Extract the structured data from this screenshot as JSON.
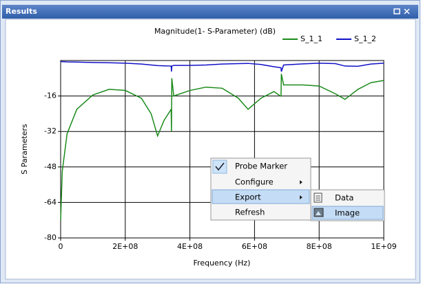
{
  "window": {
    "title": "Results"
  },
  "chart_data": {
    "type": "line",
    "title": "Magnitude(1- S-Parameter) (dB)",
    "xlabel": "Frequency (Hz)",
    "ylabel": "S Parameters",
    "x": [
      0,
      5000000,
      20000000,
      50000000,
      100000000,
      150000000,
      200000000,
      250000000,
      280000000,
      300000000,
      320000000,
      342000000,
      343000000,
      344000000,
      350000000,
      400000000,
      450000000,
      500000000,
      550000000,
      580000000,
      620000000,
      660000000,
      680000000,
      682000000,
      683000000,
      690000000,
      750000000,
      800000000,
      850000000,
      880000000,
      920000000,
      960000000,
      1000000000
    ],
    "series": [
      {
        "name": "S_1_1",
        "color": "#1a8a1a",
        "values": [
          -72,
          -50,
          -33,
          -22,
          -15.5,
          -13,
          -13.5,
          -17,
          -24,
          -34,
          -27,
          -22,
          -32,
          -8,
          -16,
          -13.5,
          -12,
          -12.5,
          -17,
          -22,
          -17,
          -14,
          -16,
          -16,
          -6,
          -11,
          -11,
          -11.5,
          -15,
          -17.5,
          -13,
          -10,
          -9
        ]
      },
      {
        "name": "S_1_2",
        "color": "#1010c8",
        "values": [
          -0.5,
          -0.5,
          -0.6,
          -0.7,
          -0.9,
          -1,
          -1.2,
          -1.6,
          -2,
          -2.3,
          -2.4,
          -2.5,
          -5,
          -2.5,
          -2.2,
          -2.2,
          -2,
          -1.6,
          -1.4,
          -1.3,
          -1.8,
          -2.8,
          -3.2,
          -3.3,
          -5,
          -2,
          -1.5,
          -1.2,
          -1.4,
          -2.5,
          -2.6,
          -1.6,
          -1.2
        ]
      }
    ],
    "xlim": [
      0,
      1000000000
    ],
    "xticks": [
      0,
      {
        "value": 200000000,
        "label": "2E+08"
      },
      {
        "value": 400000000,
        "label": "4E+08"
      },
      {
        "value": 600000000,
        "label": "6E+08"
      },
      {
        "value": 800000000,
        "label": "8E+08"
      },
      {
        "value": 1000000000,
        "label": "1E+09"
      }
    ],
    "ylim": [
      -80,
      0
    ],
    "yticks": [
      -80,
      -64,
      -48,
      -32,
      -16
    ],
    "grid": true
  },
  "context_menu": {
    "items": [
      "Probe Marker",
      "Configure",
      "Export",
      "Refresh"
    ]
  },
  "submenu": {
    "items": [
      "Data",
      "Image"
    ]
  }
}
